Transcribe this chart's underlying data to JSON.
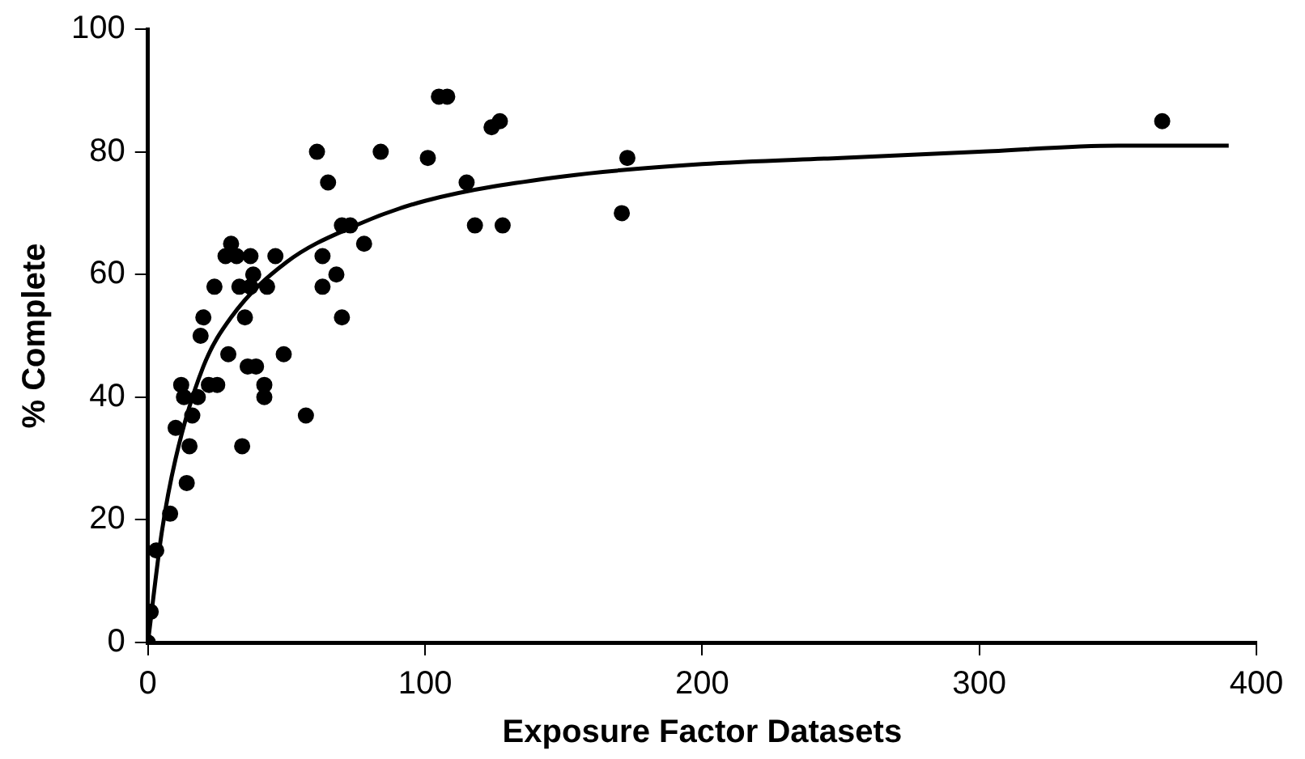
{
  "chart_data": {
    "type": "scatter",
    "xlabel": "Exposure Factor Datasets",
    "ylabel": "% Complete",
    "xlim": [
      0,
      400
    ],
    "xticks": [
      0,
      100,
      200,
      300,
      400
    ],
    "ylim": [
      0,
      100
    ],
    "yticks": [
      0,
      20,
      40,
      60,
      80,
      100
    ],
    "grid": false,
    "legend": false,
    "marker": "circle",
    "series": [
      {
        "type": "scatter",
        "color": "#000000",
        "x": [
          0,
          1,
          3,
          8,
          10,
          12,
          13,
          14,
          15,
          16,
          18,
          19,
          20,
          22,
          24,
          25,
          28,
          29,
          30,
          32,
          33,
          34,
          35,
          36,
          37,
          37,
          38,
          39,
          42,
          42,
          43,
          46,
          49,
          57,
          61,
          63,
          63,
          65,
          68,
          70,
          70,
          73,
          78,
          84,
          101,
          105,
          108,
          115,
          118,
          124,
          127,
          128,
          171,
          173,
          366
        ],
        "values": [
          0,
          5,
          15,
          21,
          35,
          42,
          40,
          26,
          32,
          37,
          40,
          50,
          53,
          42,
          58,
          42,
          63,
          47,
          65,
          63,
          58,
          32,
          53,
          45,
          63,
          58,
          60,
          45,
          40,
          42,
          58,
          63,
          47,
          37,
          80,
          63,
          58,
          75,
          60,
          53,
          68,
          68,
          65,
          80,
          79,
          89,
          89,
          75,
          68,
          84,
          85,
          68,
          70,
          79,
          85
        ]
      },
      {
        "type": "line",
        "color": "#000000",
        "marker": "none",
        "line_style": "solid",
        "x": [
          0,
          5,
          10,
          20,
          30,
          50,
          75,
          100,
          150,
          200,
          250,
          300,
          350,
          390
        ],
        "values": [
          0,
          18,
          30,
          45,
          53,
          62,
          68,
          72,
          76,
          78,
          79,
          80,
          81,
          81
        ]
      }
    ]
  }
}
